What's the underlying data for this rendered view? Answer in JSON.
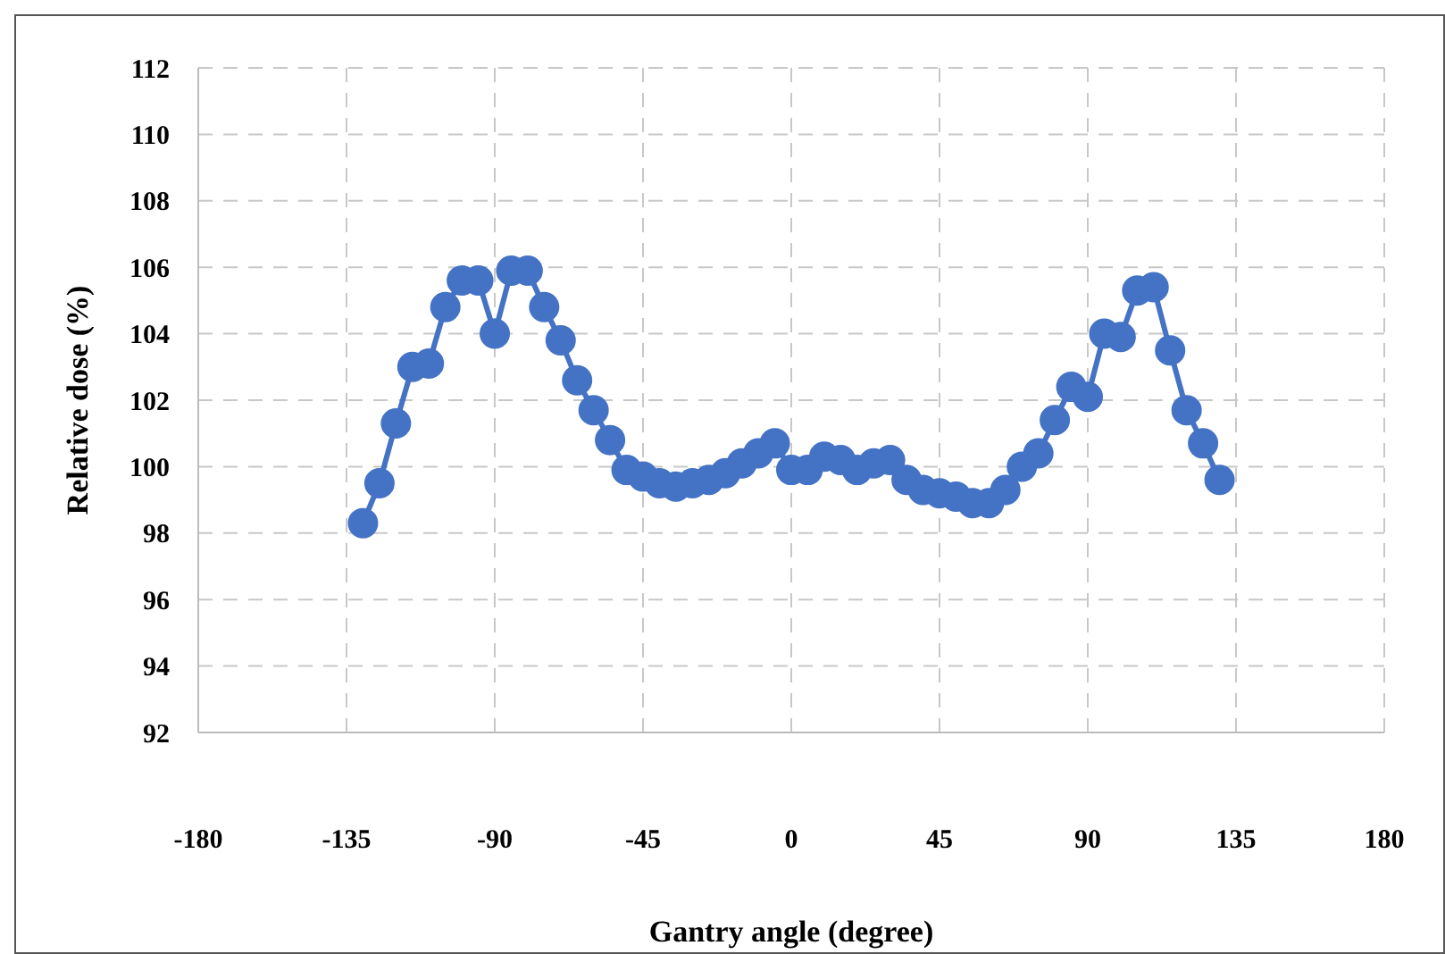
{
  "chart_data": {
    "type": "line",
    "xlabel": "Gantry angle (degree)",
    "ylabel": "Relative dose (%)",
    "x": [
      -130,
      -125,
      -120,
      -115,
      -110,
      -105,
      -100,
      -95,
      -90,
      -85,
      -80,
      -75,
      -70,
      -65,
      -60,
      -55,
      -50,
      -45,
      -40,
      -35,
      -30,
      -25,
      -20,
      -15,
      -10,
      -5,
      0,
      5,
      10,
      15,
      20,
      25,
      30,
      35,
      40,
      45,
      50,
      55,
      60,
      65,
      70,
      75,
      80,
      85,
      90,
      95,
      100,
      105,
      110,
      115,
      120,
      125,
      130
    ],
    "series": [
      {
        "color": "#4472c4",
        "values": [
          98.3,
          99.5,
          101.3,
          103.0,
          103.1,
          104.8,
          105.6,
          105.6,
          104.0,
          105.9,
          105.9,
          104.8,
          103.8,
          102.6,
          101.7,
          100.8,
          99.9,
          99.7,
          99.5,
          99.4,
          99.5,
          99.6,
          99.8,
          100.1,
          100.4,
          100.7,
          99.9,
          99.9,
          100.3,
          100.2,
          99.9,
          100.1,
          100.2,
          99.6,
          99.3,
          99.2,
          99.1,
          98.9,
          98.9,
          99.3,
          100.0,
          100.4,
          101.4,
          102.4,
          102.1,
          104.0,
          103.9,
          105.3,
          105.4,
          103.5,
          101.7,
          100.7,
          99.6
        ]
      }
    ],
    "xlim": [
      -180,
      180
    ],
    "xticks": [
      -180,
      -135,
      -90,
      -45,
      0,
      45,
      90,
      135,
      180
    ],
    "ylim": [
      92,
      112
    ],
    "yticks": [
      92,
      94,
      96,
      98,
      100,
      102,
      104,
      106,
      108,
      110,
      112
    ],
    "grid": true,
    "legend": false,
    "marker": "circle",
    "line_style": "solid"
  }
}
